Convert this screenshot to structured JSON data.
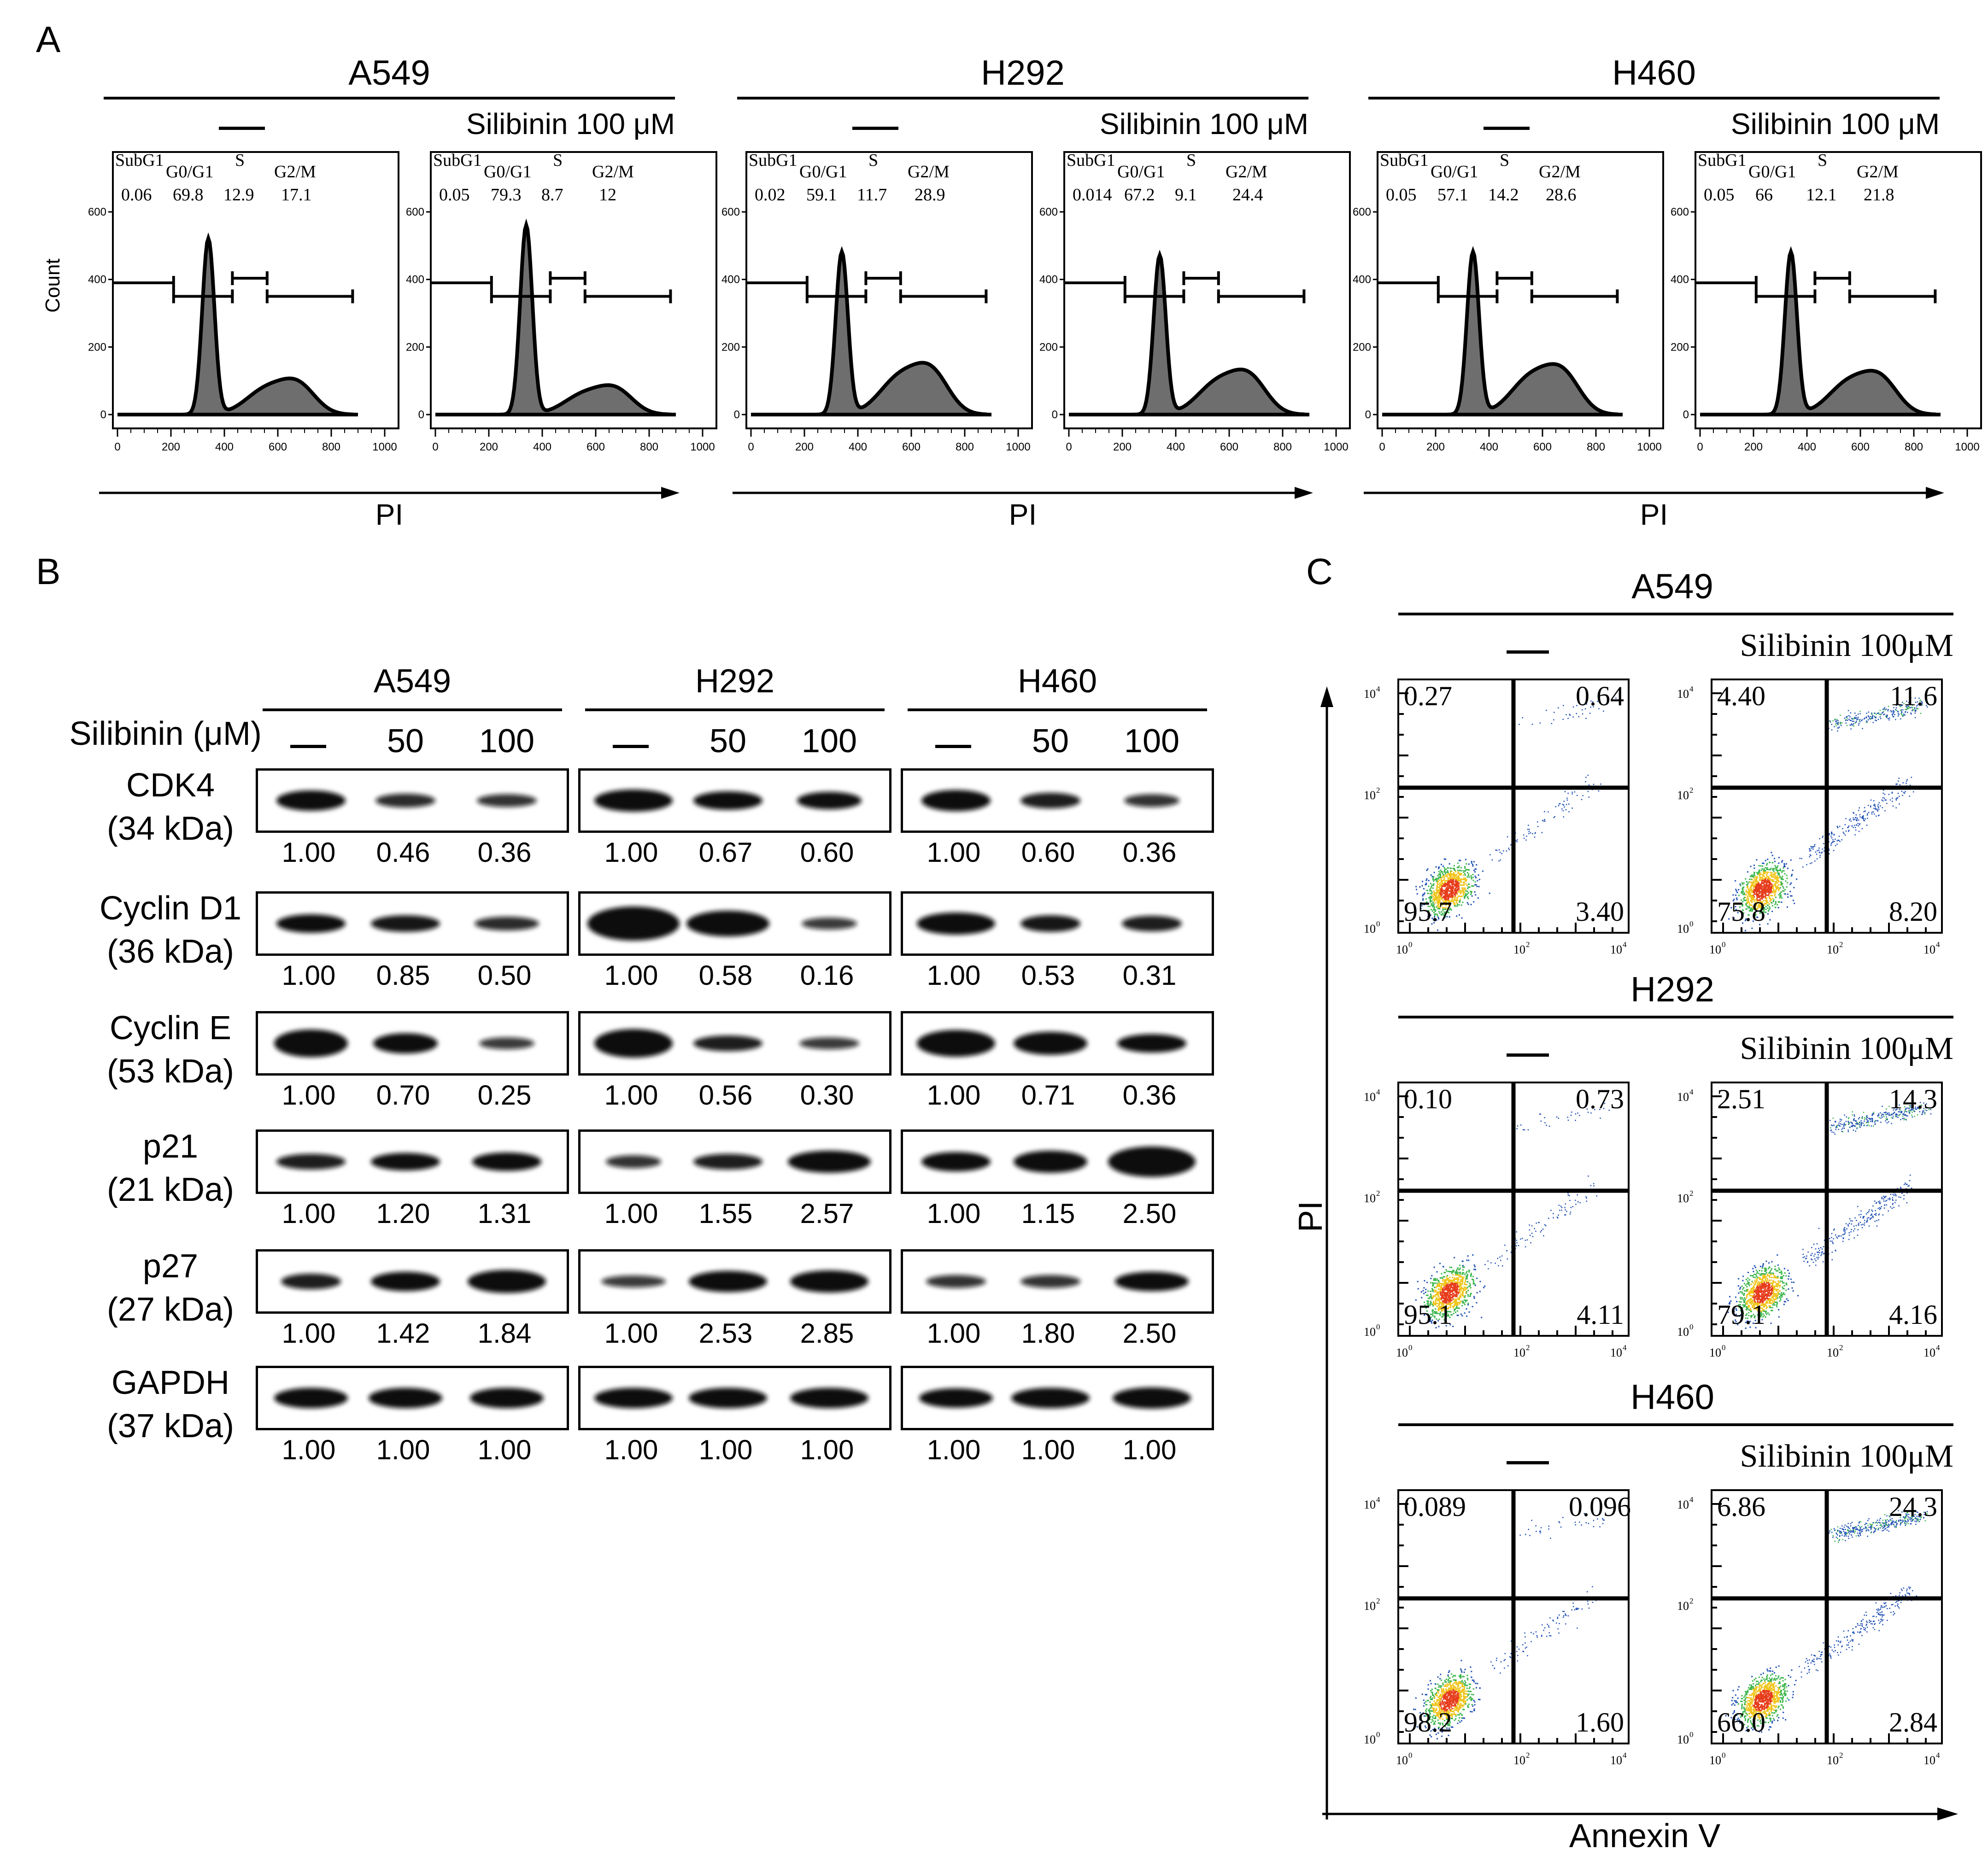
{
  "panels": {
    "a": "A",
    "b": "B",
    "c": "C"
  },
  "colors": {
    "histogram_fill": "#6e6e6e",
    "line": "#000000"
  },
  "panelA": {
    "y_axis_label": "Count",
    "x_axis_label": "PI",
    "gate_headers": {
      "subg1": "SubG1",
      "g0g1": "G0/G1",
      "s": "S",
      "g2m": "G2/M"
    },
    "y_ticks": [
      "600",
      "400",
      "200",
      "0"
    ],
    "x_ticks": [
      "0",
      "200",
      "400",
      "600",
      "800",
      "1000"
    ],
    "groups": [
      {
        "cell_line": "A549",
        "control_label": "—",
        "treated_label": "Silibinin 100 μM",
        "plots": [
          {
            "subg1": "0.06",
            "g0g1": "69.8",
            "s": "12.9",
            "g2m": "17.1"
          },
          {
            "subg1": "0.05",
            "g0g1": "79.3",
            "s": "8.7",
            "g2m": "12"
          }
        ]
      },
      {
        "cell_line": "H292",
        "control_label": "—",
        "treated_label": "Silibinin 100 μM",
        "plots": [
          {
            "subg1": "0.02",
            "g0g1": "59.1",
            "s": "11.7",
            "g2m": "28.9"
          },
          {
            "subg1": "0.014",
            "g0g1": "67.2",
            "s": "9.1",
            "g2m": "24.4"
          }
        ]
      },
      {
        "cell_line": "H460",
        "control_label": "—",
        "treated_label": "Silibinin 100 μM",
        "plots": [
          {
            "subg1": "0.05",
            "g0g1": "57.1",
            "s": "14.2",
            "g2m": "28.6"
          },
          {
            "subg1": "0.05",
            "g0g1": "66",
            "s": "12.1",
            "g2m": "21.8"
          }
        ]
      }
    ]
  },
  "panelB": {
    "treatment_label": "Silibinin (μM)",
    "cell_lines": [
      "A549",
      "H292",
      "H460"
    ],
    "doses": [
      "—",
      "50",
      "100"
    ],
    "proteins": [
      {
        "name": "CDK4",
        "kda": "(34 kDa)",
        "values": [
          [
            "1.00",
            "0.46",
            "0.36"
          ],
          [
            "1.00",
            "0.67",
            "0.60"
          ],
          [
            "1.00",
            "0.60",
            "0.36"
          ]
        ]
      },
      {
        "name": "Cyclin D1",
        "kda": "(36 kDa)",
        "values": [
          [
            "1.00",
            "0.85",
            "0.50"
          ],
          [
            "1.00",
            "0.58",
            "0.16"
          ],
          [
            "1.00",
            "0.53",
            "0.31"
          ]
        ]
      },
      {
        "name": "Cyclin E",
        "kda": "(53 kDa)",
        "values": [
          [
            "1.00",
            "0.70",
            "0.25"
          ],
          [
            "1.00",
            "0.56",
            "0.30"
          ],
          [
            "1.00",
            "0.71",
            "0.36"
          ]
        ]
      },
      {
        "name": "p21",
        "kda": "(21 kDa)",
        "values": [
          [
            "1.00",
            "1.20",
            "1.31"
          ],
          [
            "1.00",
            "1.55",
            "2.57"
          ],
          [
            "1.00",
            "1.15",
            "2.50"
          ]
        ]
      },
      {
        "name": "p27",
        "kda": "(27 kDa)",
        "values": [
          [
            "1.00",
            "1.42",
            "1.84"
          ],
          [
            "1.00",
            "2.53",
            "2.85"
          ],
          [
            "1.00",
            "1.80",
            "2.50"
          ]
        ]
      },
      {
        "name": "GAPDH",
        "kda": "(37 kDa)",
        "values": [
          [
            "1.00",
            "1.00",
            "1.00"
          ],
          [
            "1.00",
            "1.00",
            "1.00"
          ],
          [
            "1.00",
            "1.00",
            "1.00"
          ]
        ]
      }
    ]
  },
  "panelC": {
    "x_axis_label": "Annexin V",
    "y_axis_label": "PI",
    "groups": [
      {
        "cell_line": "A549",
        "control_label": "—",
        "treated_label": "Silibinin 100μM",
        "plots": [
          {
            "ul": "0.27",
            "ur": "0.64",
            "ll": "95.7",
            "lr": "3.40"
          },
          {
            "ul": "4.40",
            "ur": "11.6",
            "ll": "75.8",
            "lr": "8.20"
          }
        ]
      },
      {
        "cell_line": "H292",
        "control_label": "—",
        "treated_label": "Silibinin 100μM",
        "plots": [
          {
            "ul": "0.10",
            "ur": "0.73",
            "ll": "95.1",
            "lr": "4.11"
          },
          {
            "ul": "2.51",
            "ur": "14.3",
            "ll": "79.1",
            "lr": "4.16"
          }
        ]
      },
      {
        "cell_line": "H460",
        "control_label": "—",
        "treated_label": "Silibinin 100μM",
        "plots": [
          {
            "ul": "0.089",
            "ur": "0.096",
            "ll": "98.2",
            "lr": "1.60"
          },
          {
            "ul": "6.86",
            "ur": "24.3",
            "ll": "66.0",
            "lr": "2.84"
          }
        ]
      }
    ]
  }
}
